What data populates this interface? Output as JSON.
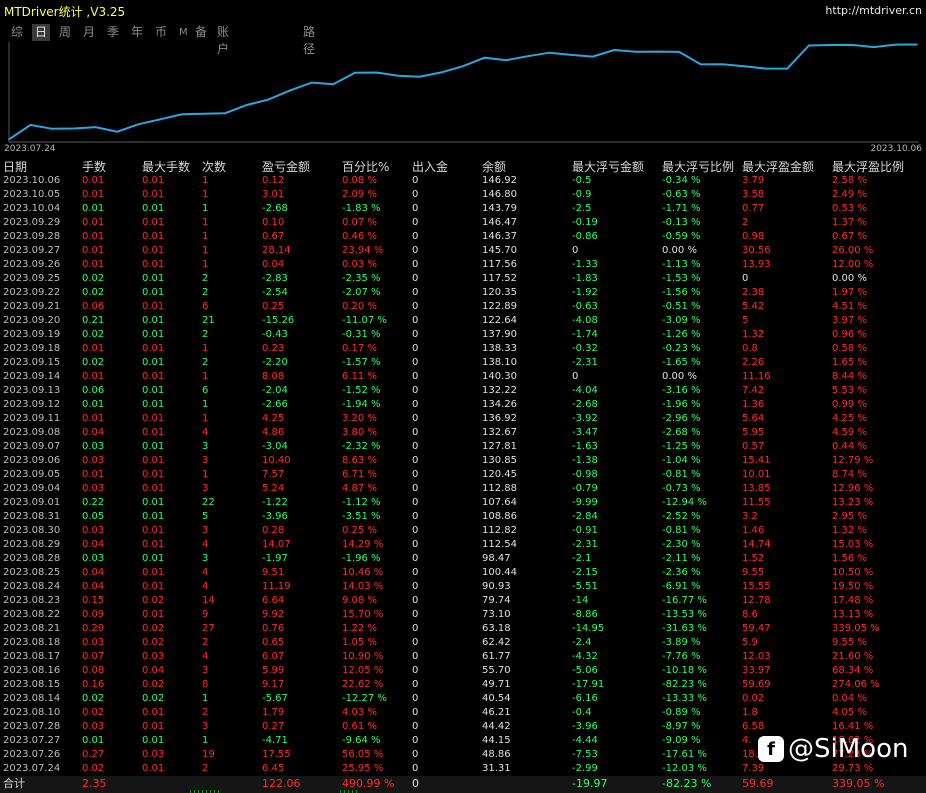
{
  "app": {
    "title": "MTDriver统计 ,V3.25",
    "url": "http://mtdriver.cn"
  },
  "tabs": [
    {
      "label": "综",
      "active": false
    },
    {
      "label": "日",
      "active": true
    },
    {
      "label": "周",
      "active": false
    },
    {
      "label": "月",
      "active": false
    },
    {
      "label": "季",
      "active": false
    },
    {
      "label": "年",
      "active": false
    },
    {
      "label": "币",
      "active": false
    },
    {
      "label": "M",
      "active": false
    },
    {
      "label": "备",
      "active": false
    },
    {
      "label": "账户",
      "active": false
    },
    {
      "label": "路径",
      "active": false
    }
  ],
  "chart_data": {
    "type": "line",
    "x_start_label": "2023.07.24",
    "x_end_label": "2023.10.06",
    "x": [
      "2023.07.24",
      "2023.07.26",
      "2023.07.27",
      "2023.07.28",
      "2023.08.10",
      "2023.08.14",
      "2023.08.15",
      "2023.08.16",
      "2023.08.17",
      "2023.08.18",
      "2023.08.21",
      "2023.08.22",
      "2023.08.23",
      "2023.08.24",
      "2023.08.25",
      "2023.08.28",
      "2023.08.29",
      "2023.08.30",
      "2023.08.31",
      "2023.09.01",
      "2023.09.04",
      "2023.09.05",
      "2023.09.06",
      "2023.09.07",
      "2023.09.08",
      "2023.09.11",
      "2023.09.12",
      "2023.09.13",
      "2023.09.14",
      "2023.09.15",
      "2023.09.18",
      "2023.09.19",
      "2023.09.20",
      "2023.09.21",
      "2023.09.22",
      "2023.09.25",
      "2023.09.26",
      "2023.09.27",
      "2023.09.28",
      "2023.09.29",
      "2023.10.04",
      "2023.10.05",
      "2023.10.06"
    ],
    "values": [
      31.31,
      48.86,
      44.15,
      44.42,
      46.21,
      40.54,
      49.71,
      55.7,
      61.77,
      62.42,
      63.18,
      73.1,
      79.74,
      90.93,
      100.44,
      98.47,
      112.54,
      112.82,
      108.86,
      107.64,
      112.88,
      120.45,
      130.85,
      127.81,
      132.67,
      136.92,
      134.26,
      132.22,
      140.3,
      138.1,
      138.33,
      137.9,
      122.64,
      122.89,
      120.35,
      117.52,
      117.56,
      145.7,
      146.37,
      146.47,
      143.79,
      146.8,
      146.92
    ],
    "line_color": "#29a8e0",
    "grid": false,
    "legend": "none"
  },
  "table": {
    "headers": [
      "日期",
      "手数",
      "最大手数",
      "次数",
      "盈亏金额",
      "百分比%",
      "出入金",
      "余额",
      "最大浮亏金额",
      "最大浮亏比例",
      "最大浮盈金额",
      "最大浮盈比例"
    ],
    "rows": [
      [
        "2023.10.06",
        "0.01",
        "0.01",
        "1",
        "0.12",
        "0.08 %",
        "0",
        "146.92",
        "-0.5",
        "-0.34 %",
        "3.79",
        "2.58 %"
      ],
      [
        "2023.10.05",
        "0.01",
        "0.01",
        "1",
        "3.01",
        "2.09 %",
        "0",
        "146.80",
        "-0.9",
        "-0.63 %",
        "3.58",
        "2.49 %"
      ],
      [
        "2023.10.04",
        "0.01",
        "0.01",
        "1",
        "-2.68",
        "-1.83 %",
        "0",
        "143.79",
        "-2.5",
        "-1.71 %",
        "0.77",
        "0.53 %"
      ],
      [
        "2023.09.29",
        "0.01",
        "0.01",
        "1",
        "0.10",
        "0.07 %",
        "0",
        "146.47",
        "-0.19",
        "-0.13 %",
        "2",
        "1.37 %"
      ],
      [
        "2023.09.28",
        "0.01",
        "0.01",
        "1",
        "0.67",
        "0.46 %",
        "0",
        "146.37",
        "-0.86",
        "-0.59 %",
        "0.98",
        "0.67 %"
      ],
      [
        "2023.09.27",
        "0.01",
        "0.01",
        "1",
        "28.14",
        "23.94 %",
        "0",
        "145.70",
        "0",
        "0.00 %",
        "30.56",
        "26.00 %"
      ],
      [
        "2023.09.26",
        "0.01",
        "0.01",
        "1",
        "0.04",
        "0.03 %",
        "0",
        "117.56",
        "-1.33",
        "-1.13 %",
        "13.93",
        "12.00 %"
      ],
      [
        "2023.09.25",
        "0.02",
        "0.01",
        "2",
        "-2.83",
        "-2.35 %",
        "0",
        "117.52",
        "-1.83",
        "-1.53 %",
        "0",
        "0.00 %"
      ],
      [
        "2023.09.22",
        "0.02",
        "0.01",
        "2",
        "-2.54",
        "-2.07 %",
        "0",
        "120.35",
        "-1.92",
        "-1.56 %",
        "2.38",
        "1.97 %"
      ],
      [
        "2023.09.21",
        "0.06",
        "0.01",
        "6",
        "0.25",
        "0.20 %",
        "0",
        "122.89",
        "-0.63",
        "-0.51 %",
        "5.42",
        "4.51 %"
      ],
      [
        "2023.09.20",
        "0.21",
        "0.01",
        "21",
        "-15.26",
        "-11.07 %",
        "0",
        "122.64",
        "-4.08",
        "-3.09 %",
        "5",
        "3.97 %"
      ],
      [
        "2023.09.19",
        "0.02",
        "0.01",
        "2",
        "-0.43",
        "-0.31 %",
        "0",
        "137.90",
        "-1.74",
        "-1.26 %",
        "1.32",
        "0.96 %"
      ],
      [
        "2023.09.18",
        "0.01",
        "0.01",
        "1",
        "0.23",
        "0.17 %",
        "0",
        "138.33",
        "-0.32",
        "-0.23 %",
        "0.8",
        "0.58 %"
      ],
      [
        "2023.09.15",
        "0.02",
        "0.01",
        "2",
        "-2.20",
        "-1.57 %",
        "0",
        "138.10",
        "-2.31",
        "-1.65 %",
        "2.26",
        "1.65 %"
      ],
      [
        "2023.09.14",
        "0.01",
        "0.01",
        "1",
        "8.08",
        "6.11 %",
        "0",
        "140.30",
        "0",
        "0.00 %",
        "11.16",
        "8.44 %"
      ],
      [
        "2023.09.13",
        "0.06",
        "0.01",
        "6",
        "-2.04",
        "-1.52 %",
        "0",
        "132.22",
        "-4.04",
        "-3.16 %",
        "7.42",
        "5.53 %"
      ],
      [
        "2023.09.12",
        "0.01",
        "0.01",
        "1",
        "-2.66",
        "-1.94 %",
        "0",
        "134.26",
        "-2.68",
        "-1.96 %",
        "1.36",
        "0.99 %"
      ],
      [
        "2023.09.11",
        "0.01",
        "0.01",
        "1",
        "4.25",
        "3.20 %",
        "0",
        "136.92",
        "-3.92",
        "-2.96 %",
        "5.64",
        "4.25 %"
      ],
      [
        "2023.09.08",
        "0.04",
        "0.01",
        "4",
        "4.86",
        "3.80 %",
        "0",
        "132.67",
        "-3.47",
        "-2.68 %",
        "5.95",
        "4.59 %"
      ],
      [
        "2023.09.07",
        "0.03",
        "0.01",
        "3",
        "-3.04",
        "-2.32 %",
        "0",
        "127.81",
        "-1.63",
        "-1.25 %",
        "0.57",
        "0.44 %"
      ],
      [
        "2023.09.06",
        "0.03",
        "0.01",
        "3",
        "10.40",
        "8.63 %",
        "0",
        "130.85",
        "-1.38",
        "-1.04 %",
        "15.41",
        "12.79 %"
      ],
      [
        "2023.09.05",
        "0.01",
        "0.01",
        "1",
        "7.57",
        "6.71 %",
        "0",
        "120.45",
        "-0.98",
        "-0.81 %",
        "10.01",
        "8.74 %"
      ],
      [
        "2023.09.04",
        "0.03",
        "0.01",
        "3",
        "5.24",
        "4.87 %",
        "0",
        "112.88",
        "-0.79",
        "-0.73 %",
        "13.85",
        "12.96 %"
      ],
      [
        "2023.09.01",
        "0.22",
        "0.01",
        "22",
        "-1.22",
        "-1.12 %",
        "0",
        "107.64",
        "-9.99",
        "-12.94 %",
        "11.55",
        "13.23 %"
      ],
      [
        "2023.08.31",
        "0.05",
        "0.01",
        "5",
        "-3.96",
        "-3.51 %",
        "0",
        "108.86",
        "-2.84",
        "-2.52 %",
        "3.2",
        "2.95 %"
      ],
      [
        "2023.08.30",
        "0.03",
        "0.01",
        "3",
        "0.28",
        "0.25 %",
        "0",
        "112.82",
        "-0.91",
        "-0.81 %",
        "1.46",
        "1.32 %"
      ],
      [
        "2023.08.29",
        "0.04",
        "0.01",
        "4",
        "14.07",
        "14.29 %",
        "0",
        "112.54",
        "-2.31",
        "-2.30 %",
        "14.74",
        "15.03 %"
      ],
      [
        "2023.08.28",
        "0.03",
        "0.01",
        "3",
        "-1.97",
        "-1.96 %",
        "0",
        "98.47",
        "-2.1",
        "-2.11 %",
        "1.52",
        "1.56 %"
      ],
      [
        "2023.08.25",
        "0.04",
        "0.01",
        "4",
        "9.51",
        "10.46 %",
        "0",
        "100.44",
        "-2.15",
        "-2.36 %",
        "9.55",
        "10.50 %"
      ],
      [
        "2023.08.24",
        "0.04",
        "0.01",
        "4",
        "11.19",
        "14.03 %",
        "0",
        "90.93",
        "-5.51",
        "-6.91 %",
        "15.55",
        "19.50 %"
      ],
      [
        "2023.08.23",
        "0.15",
        "0.02",
        "14",
        "6.64",
        "9.08 %",
        "0",
        "79.74",
        "-14",
        "-16.77 %",
        "12.78",
        "17.48 %"
      ],
      [
        "2023.08.22",
        "0.09",
        "0.01",
        "9",
        "9.92",
        "15.70 %",
        "0",
        "73.10",
        "-8.86",
        "-13.53 %",
        "8.6",
        "13.13 %"
      ],
      [
        "2023.08.21",
        "0.29",
        "0.02",
        "27",
        "0.76",
        "1.22 %",
        "0",
        "63.18",
        "-14.95",
        "-31.63 %",
        "59.47",
        "339.05 %"
      ],
      [
        "2023.08.18",
        "0.03",
        "0.02",
        "2",
        "0.65",
        "1.05 %",
        "0",
        "62.42",
        "-2.4",
        "-3.89 %",
        "5.9",
        "9.55 %"
      ],
      [
        "2023.08.17",
        "0.07",
        "0.03",
        "4",
        "6.07",
        "10.90 %",
        "0",
        "61.77",
        "-4.32",
        "-7.76 %",
        "12.03",
        "21.60 %"
      ],
      [
        "2023.08.16",
        "0.08",
        "0.04",
        "3",
        "5.99",
        "12.05 %",
        "0",
        "55.70",
        "-5.06",
        "-10.18 %",
        "33.97",
        "68.34 %"
      ],
      [
        "2023.08.15",
        "0.16",
        "0.02",
        "8",
        "9.17",
        "22.62 %",
        "0",
        "49.71",
        "-17.91",
        "-82.23 %",
        "59.69",
        "274.06 %"
      ],
      [
        "2023.08.14",
        "0.02",
        "0.02",
        "1",
        "-5.67",
        "-12.27 %",
        "0",
        "40.54",
        "-6.16",
        "-13.33 %",
        "0.02",
        "0.04 %"
      ],
      [
        "2023.08.10",
        "0.02",
        "0.01",
        "2",
        "1.79",
        "4.03 %",
        "0",
        "46.21",
        "-0.4",
        "-0.89 %",
        "1.8",
        "4.05 %"
      ],
      [
        "2023.07.28",
        "0.03",
        "0.01",
        "3",
        "0.27",
        "0.61 %",
        "0",
        "44.42",
        "-3.96",
        "-8.97 %",
        "6.58",
        "16.41 %"
      ],
      [
        "2023.07.27",
        "0.01",
        "0.01",
        "1",
        "-4.71",
        "-9.64 %",
        "0",
        "44.15",
        "-4.44",
        "-9.09 %",
        "4.",
        "18.62 %"
      ],
      [
        "2023.07.26",
        "0.27",
        "0.03",
        "19",
        "17.55",
        "56.05 %",
        "0",
        "48.86",
        "-7.53",
        "-17.61 %",
        "18.",
        "77.23 %"
      ],
      [
        "2023.07.24",
        "0.02",
        "0.01",
        "2",
        "6.45",
        "25.95 %",
        "0",
        "31.31",
        "-2.99",
        "-12.03 %",
        "7.39",
        "29.73 %"
      ]
    ],
    "totals": [
      "合计",
      "2.35",
      "",
      "",
      "122.06",
      "490.99 %",
      "0",
      "",
      "-19.97",
      "-82.23 %",
      "59.69",
      "339.05 %"
    ]
  },
  "colors": {
    "profit": "#ff2b2b",
    "loss": "#2bff66",
    "title": "#ffff55",
    "background": "#000000"
  },
  "watermark": {
    "icon": "facebook-icon",
    "text": "@SiMoon"
  }
}
